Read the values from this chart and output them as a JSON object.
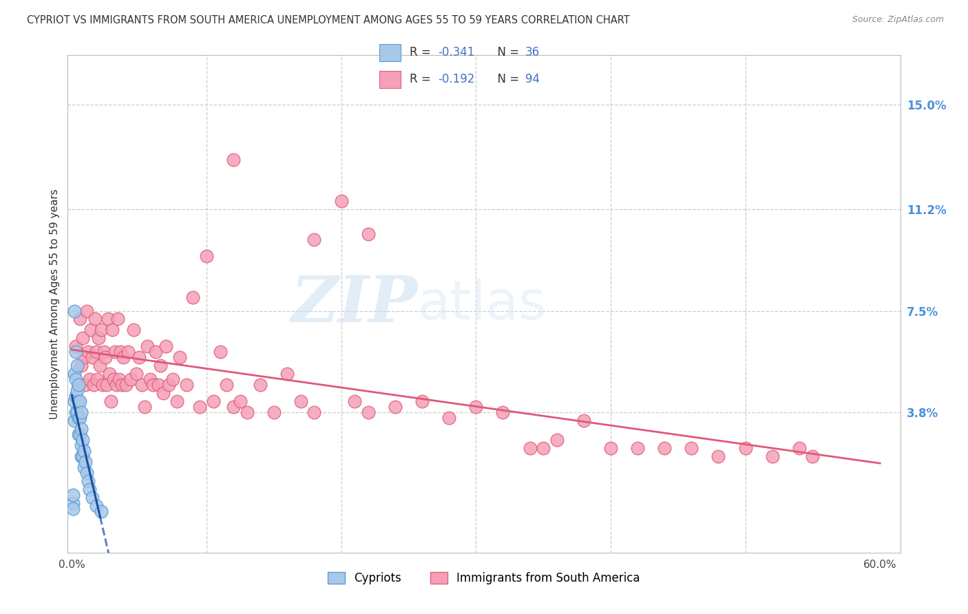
{
  "title": "CYPRIOT VS IMMIGRANTS FROM SOUTH AMERICA UNEMPLOYMENT AMONG AGES 55 TO 59 YEARS CORRELATION CHART",
  "source": "Source: ZipAtlas.com",
  "ylabel": "Unemployment Among Ages 55 to 59 years",
  "xlim_min": -0.003,
  "xlim_max": 0.615,
  "ylim_min": -0.013,
  "ylim_max": 0.168,
  "right_ytick_values": [
    0.038,
    0.075,
    0.112,
    0.15
  ],
  "right_ytick_labels": [
    "3.8%",
    "7.5%",
    "11.2%",
    "15.0%"
  ],
  "cypriot_face_color": "#a8c8e8",
  "cypriot_edge_color": "#5b9bd5",
  "immigrant_face_color": "#f4a0b8",
  "immigrant_edge_color": "#e0607a",
  "trendline_cypriot_color": "#1a50a0",
  "trendline_immigrant_color": "#e05878",
  "legend_color": "#4472c4",
  "legend_R_cypriot": "-0.341",
  "legend_N_cypriot": "36",
  "legend_R_immigrant": "-0.192",
  "legend_N_immigrant": "94",
  "legend_label_cypriot": "Cypriots",
  "legend_label_immigrant": "Immigrants from South America",
  "watermark_zip": "ZIP",
  "watermark_atlas": "atlas",
  "background_color": "#ffffff",
  "grid_color": "#cccccc",
  "cypriot_x": [
    0.001,
    0.001,
    0.001,
    0.002,
    0.002,
    0.002,
    0.002,
    0.003,
    0.003,
    0.003,
    0.003,
    0.004,
    0.004,
    0.004,
    0.005,
    0.005,
    0.005,
    0.005,
    0.006,
    0.006,
    0.006,
    0.007,
    0.007,
    0.007,
    0.007,
    0.008,
    0.008,
    0.009,
    0.009,
    0.01,
    0.011,
    0.012,
    0.013,
    0.015,
    0.018,
    0.022
  ],
  "cypriot_y": [
    0.005,
    0.008,
    0.003,
    0.075,
    0.052,
    0.042,
    0.035,
    0.06,
    0.05,
    0.044,
    0.038,
    0.055,
    0.046,
    0.038,
    0.048,
    0.042,
    0.036,
    0.03,
    0.042,
    0.036,
    0.03,
    0.038,
    0.032,
    0.026,
    0.022,
    0.028,
    0.022,
    0.024,
    0.018,
    0.02,
    0.016,
    0.013,
    0.01,
    0.007,
    0.004,
    0.002
  ],
  "immigrant_x": [
    0.003,
    0.005,
    0.006,
    0.007,
    0.008,
    0.009,
    0.01,
    0.011,
    0.012,
    0.013,
    0.014,
    0.015,
    0.016,
    0.017,
    0.018,
    0.019,
    0.02,
    0.021,
    0.022,
    0.023,
    0.024,
    0.025,
    0.026,
    0.027,
    0.028,
    0.029,
    0.03,
    0.031,
    0.032,
    0.033,
    0.034,
    0.035,
    0.036,
    0.037,
    0.038,
    0.04,
    0.042,
    0.044,
    0.046,
    0.048,
    0.05,
    0.052,
    0.054,
    0.056,
    0.058,
    0.06,
    0.062,
    0.064,
    0.066,
    0.068,
    0.07,
    0.072,
    0.075,
    0.078,
    0.08,
    0.085,
    0.09,
    0.095,
    0.1,
    0.105,
    0.11,
    0.115,
    0.12,
    0.125,
    0.13,
    0.14,
    0.15,
    0.16,
    0.17,
    0.18,
    0.2,
    0.21,
    0.22,
    0.24,
    0.26,
    0.28,
    0.3,
    0.32,
    0.34,
    0.36,
    0.38,
    0.4,
    0.42,
    0.44,
    0.46,
    0.48,
    0.5,
    0.52,
    0.54,
    0.55,
    0.22,
    0.18,
    0.12,
    0.35
  ],
  "immigrant_y": [
    0.062,
    0.048,
    0.072,
    0.055,
    0.065,
    0.058,
    0.048,
    0.075,
    0.06,
    0.05,
    0.068,
    0.058,
    0.048,
    0.072,
    0.06,
    0.05,
    0.065,
    0.055,
    0.068,
    0.048,
    0.06,
    0.058,
    0.048,
    0.072,
    0.052,
    0.042,
    0.068,
    0.05,
    0.06,
    0.048,
    0.072,
    0.05,
    0.06,
    0.048,
    0.058,
    0.048,
    0.06,
    0.05,
    0.068,
    0.052,
    0.058,
    0.048,
    0.04,
    0.062,
    0.05,
    0.048,
    0.06,
    0.048,
    0.055,
    0.045,
    0.062,
    0.048,
    0.05,
    0.042,
    0.058,
    0.048,
    0.08,
    0.04,
    0.095,
    0.042,
    0.06,
    0.048,
    0.04,
    0.042,
    0.038,
    0.048,
    0.038,
    0.052,
    0.042,
    0.038,
    0.115,
    0.042,
    0.038,
    0.04,
    0.042,
    0.036,
    0.04,
    0.038,
    0.025,
    0.028,
    0.035,
    0.025,
    0.025,
    0.025,
    0.025,
    0.022,
    0.025,
    0.022,
    0.025,
    0.022,
    0.103,
    0.101,
    0.13,
    0.025
  ]
}
